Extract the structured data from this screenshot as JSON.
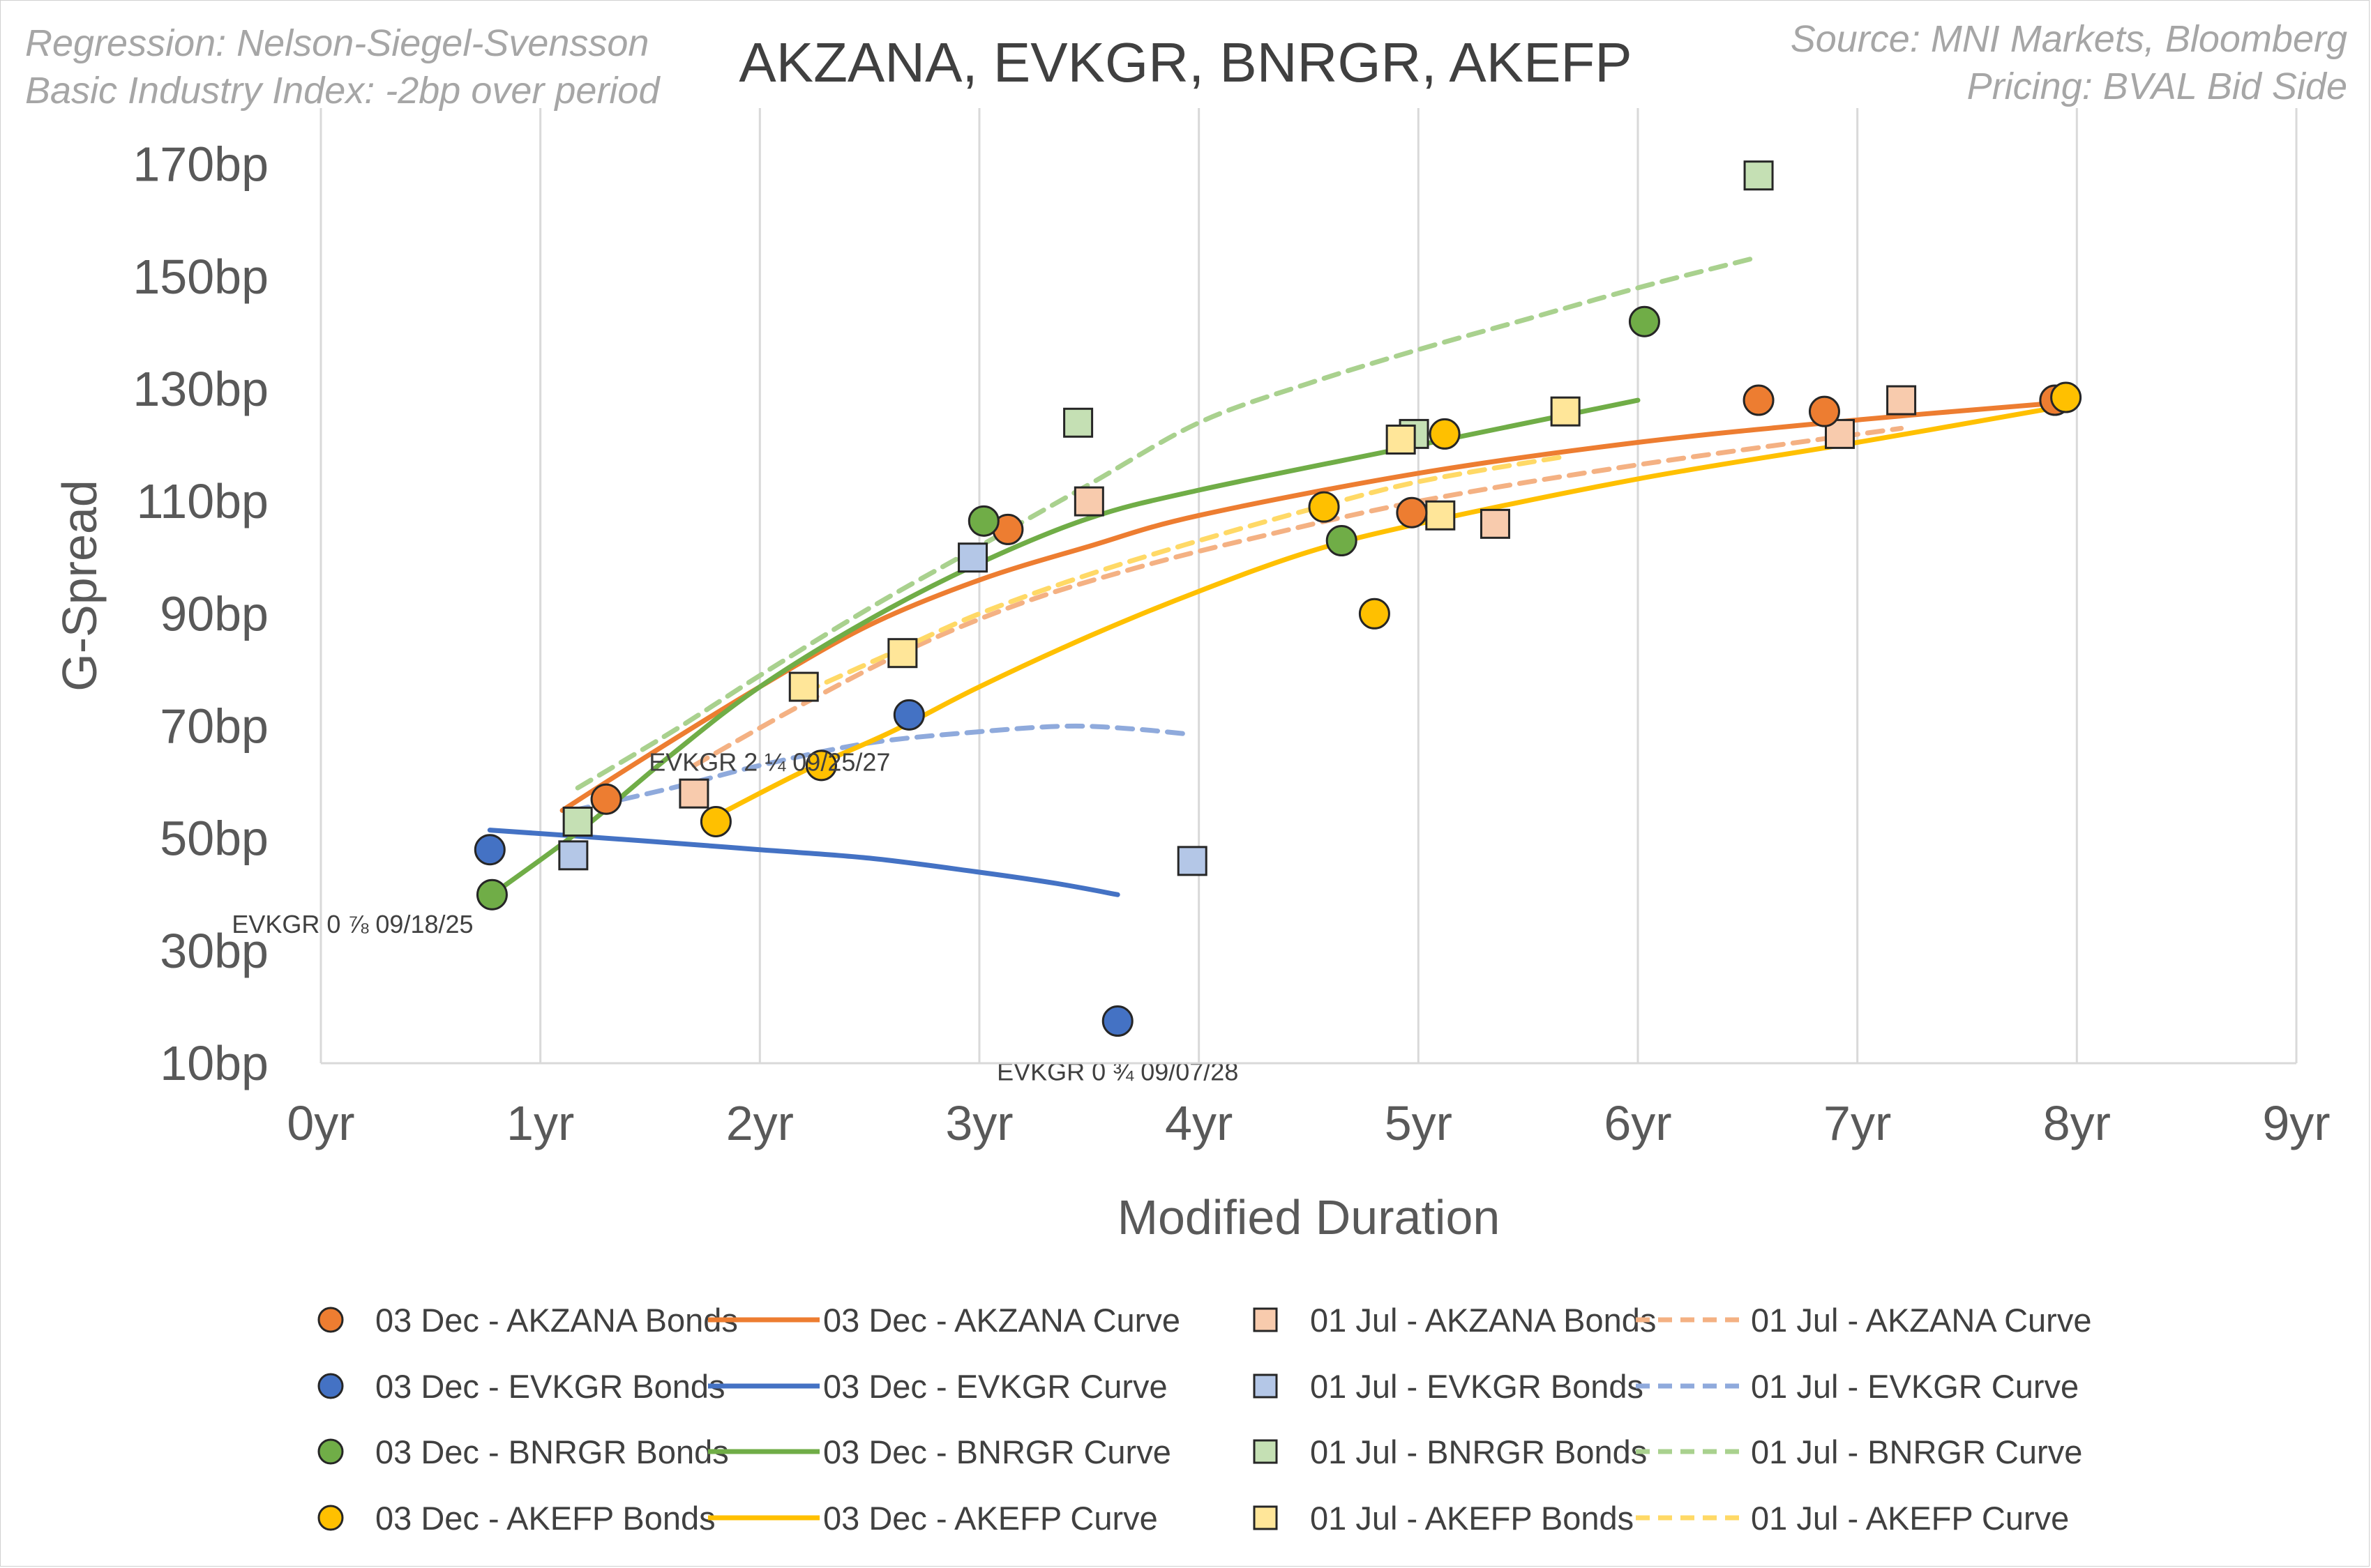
{
  "title": "AKZANA, EVKGR, BNRGR, AKEFP",
  "notes_left": [
    "Regression: Nelson-Siegel-Svensson",
    "Basic Industry Index: -2bp over period"
  ],
  "notes_right": [
    "Source: MNI Markets, Bloomberg",
    "Pricing: BVAL Bid Side"
  ],
  "chart_data": {
    "type": "scatter",
    "xlabel": "Modified Duration",
    "ylabel": "G-Spread",
    "xlim": [
      0,
      9
    ],
    "ylim": [
      10,
      180
    ],
    "xticks": [
      0,
      1,
      2,
      3,
      4,
      5,
      6,
      7,
      8,
      9
    ],
    "xtick_labels": [
      "0yr",
      "1yr",
      "2yr",
      "3yr",
      "4yr",
      "5yr",
      "6yr",
      "7yr",
      "8yr",
      "9yr"
    ],
    "yticks": [
      10,
      30,
      50,
      70,
      90,
      110,
      130,
      150,
      170
    ],
    "ytick_labels": [
      "10bp",
      "30bp",
      "50bp",
      "70bp",
      "90bp",
      "110bp",
      "130bp",
      "150bp",
      "170bp"
    ],
    "grid": "vertical",
    "legend_position": "bottom",
    "colors": {
      "akzana": "#ed7d31",
      "evkgr": "#4472c4",
      "bnrgr": "#70ad47",
      "akefp": "#ffc000",
      "akzana_light": "#f8cbad",
      "evkgr_light": "#b4c7e7",
      "bnrgr_light": "#c5e0b4",
      "akefp_light": "#ffe699",
      "akzana_dash": "#f4b183",
      "evkgr_dash": "#8faadc",
      "bnrgr_dash": "#a9d18e",
      "akefp_dash": "#ffd966"
    },
    "series": [
      {
        "id": "akzana-bonds-dec",
        "name": "03 Dec - AKZANA Bonds",
        "kind": "bonds",
        "marker": "circle",
        "color": "akzana",
        "points": [
          [
            1.3,
            57
          ],
          [
            3.13,
            105
          ],
          [
            4.97,
            108
          ],
          [
            6.55,
            128
          ],
          [
            6.85,
            126
          ],
          [
            7.9,
            128
          ]
        ]
      },
      {
        "id": "akzana-curve-dec",
        "name": "03 Dec - AKZANA Curve",
        "kind": "curve",
        "dashed": false,
        "color": "akzana",
        "points": [
          [
            1.1,
            55
          ],
          [
            1.5,
            65
          ],
          [
            2.0,
            77
          ],
          [
            2.5,
            88
          ],
          [
            3.0,
            96
          ],
          [
            3.5,
            102
          ],
          [
            4.0,
            107.5
          ],
          [
            5.0,
            115
          ],
          [
            6.0,
            120.5
          ],
          [
            7.0,
            124.5
          ],
          [
            7.9,
            127.5
          ]
        ]
      },
      {
        "id": "akzana-bonds-jul",
        "name": "01 Jul - AKZANA Bonds",
        "kind": "bonds",
        "marker": "square",
        "color": "akzana_light",
        "points": [
          [
            1.7,
            58
          ],
          [
            3.5,
            110
          ],
          [
            5.35,
            106
          ],
          [
            6.92,
            122
          ],
          [
            7.2,
            128
          ]
        ]
      },
      {
        "id": "akzana-curve-jul",
        "name": "01 Jul - AKZANA Curve",
        "kind": "curve",
        "dashed": true,
        "color": "akzana_dash",
        "points": [
          [
            1.7,
            63
          ],
          [
            2.2,
            74
          ],
          [
            2.7,
            84
          ],
          [
            3.2,
            92
          ],
          [
            3.7,
            98
          ],
          [
            4.2,
            103
          ],
          [
            5.0,
            110
          ],
          [
            6.0,
            116.5
          ],
          [
            7.2,
            123
          ]
        ]
      },
      {
        "id": "evkgr-bonds-dec",
        "name": "03 Dec - EVKGR Bonds",
        "kind": "bonds",
        "marker": "circle",
        "color": "evkgr",
        "points": [
          [
            0.77,
            48
          ],
          [
            2.68,
            72
          ],
          [
            3.63,
            17.5
          ]
        ]
      },
      {
        "id": "evkgr-curve-dec",
        "name": "03 Dec - EVKGR Curve",
        "kind": "curve",
        "dashed": false,
        "color": "evkgr",
        "points": [
          [
            0.77,
            51.5
          ],
          [
            1.5,
            49.5
          ],
          [
            2.0,
            48
          ],
          [
            2.5,
            46.5
          ],
          [
            3.0,
            44
          ],
          [
            3.35,
            42
          ],
          [
            3.63,
            40
          ]
        ]
      },
      {
        "id": "evkgr-bonds-jul",
        "name": "01 Jul - EVKGR Bonds",
        "kind": "bonds",
        "marker": "square",
        "color": "evkgr_light",
        "points": [
          [
            1.15,
            47
          ],
          [
            2.97,
            100
          ],
          [
            3.97,
            46
          ]
        ]
      },
      {
        "id": "evkgr-curve-jul",
        "name": "01 Jul - EVKGR Curve",
        "kind": "curve",
        "dashed": true,
        "color": "evkgr_dash",
        "points": [
          [
            1.15,
            55
          ],
          [
            1.6,
            59
          ],
          [
            2.0,
            63
          ],
          [
            2.5,
            67
          ],
          [
            3.0,
            69
          ],
          [
            3.4,
            70
          ],
          [
            3.7,
            69.5
          ],
          [
            3.97,
            68.5
          ]
        ]
      },
      {
        "id": "bnrgr-bonds-dec",
        "name": "03 Dec - BNRGR Bonds",
        "kind": "bonds",
        "marker": "circle",
        "color": "bnrgr",
        "points": [
          [
            0.78,
            40
          ],
          [
            3.02,
            106.5
          ],
          [
            4.65,
            103
          ],
          [
            6.03,
            142
          ]
        ]
      },
      {
        "id": "bnrgr-curve-dec",
        "name": "03 Dec - BNRGR Curve",
        "kind": "curve",
        "dashed": false,
        "color": "bnrgr",
        "points": [
          [
            0.78,
            40
          ],
          [
            1.2,
            52
          ],
          [
            1.6,
            65
          ],
          [
            2.0,
            77
          ],
          [
            2.5,
            89
          ],
          [
            3.0,
            99
          ],
          [
            3.5,
            107
          ],
          [
            4.0,
            112
          ],
          [
            5.0,
            120
          ],
          [
            6.0,
            128
          ]
        ]
      },
      {
        "id": "bnrgr-bonds-jul",
        "name": "01 Jul - BNRGR Bonds",
        "kind": "bonds",
        "marker": "square",
        "color": "bnrgr_light",
        "points": [
          [
            1.17,
            53
          ],
          [
            3.45,
            124
          ],
          [
            4.98,
            122
          ],
          [
            6.55,
            168
          ]
        ]
      },
      {
        "id": "bnrgr-curve-jul",
        "name": "01 Jul - BNRGR Curve",
        "kind": "curve",
        "dashed": true,
        "color": "bnrgr_dash",
        "points": [
          [
            1.17,
            59
          ],
          [
            1.6,
            69
          ],
          [
            2.0,
            79
          ],
          [
            2.5,
            91
          ],
          [
            3.0,
            102
          ],
          [
            3.5,
            113
          ],
          [
            4.0,
            124
          ],
          [
            4.5,
            131
          ],
          [
            5.0,
            137
          ],
          [
            5.5,
            142.5
          ],
          [
            6.0,
            148
          ],
          [
            6.55,
            153.5
          ]
        ]
      },
      {
        "id": "akefp-bonds-dec",
        "name": "03 Dec - AKEFP Bonds",
        "kind": "bonds",
        "marker": "circle",
        "color": "akefp",
        "points": [
          [
            1.8,
            53
          ],
          [
            2.28,
            63
          ],
          [
            4.57,
            109
          ],
          [
            4.8,
            90
          ],
          [
            5.12,
            122
          ],
          [
            7.95,
            128.5
          ]
        ]
      },
      {
        "id": "akefp-curve-dec",
        "name": "03 Dec - AKEFP Curve",
        "kind": "curve",
        "dashed": false,
        "color": "akefp",
        "points": [
          [
            1.8,
            54
          ],
          [
            2.2,
            62
          ],
          [
            2.6,
            69
          ],
          [
            3.0,
            77
          ],
          [
            3.5,
            86
          ],
          [
            4.0,
            94
          ],
          [
            4.5,
            101
          ],
          [
            5.0,
            106
          ],
          [
            6.0,
            114
          ],
          [
            7.0,
            120.5
          ],
          [
            7.95,
            127
          ]
        ]
      },
      {
        "id": "akefp-bonds-jul",
        "name": "01 Jul - AKEFP Bonds",
        "kind": "bonds",
        "marker": "square",
        "color": "akefp_light",
        "points": [
          [
            2.2,
            77
          ],
          [
            2.65,
            83
          ],
          [
            4.92,
            121
          ],
          [
            5.1,
            107.5
          ],
          [
            5.67,
            126
          ]
        ]
      },
      {
        "id": "akefp-curve-jul",
        "name": "01 Jul - AKEFP Curve",
        "kind": "curve",
        "dashed": true,
        "color": "akefp_dash",
        "points": [
          [
            2.2,
            76
          ],
          [
            2.6,
            83
          ],
          [
            3.0,
            90
          ],
          [
            3.5,
            97
          ],
          [
            4.0,
            103
          ],
          [
            4.5,
            108.5
          ],
          [
            5.0,
            113.5
          ],
          [
            5.67,
            118
          ]
        ]
      }
    ],
    "annotations": [
      {
        "id": "annot-evkgr-0875",
        "text": "EVKGR 0 ⅞ 09/18/25",
        "x": 0.78,
        "y": 40,
        "anchor": "below-left"
      },
      {
        "id": "annot-evkgr-225",
        "text": "EVKGR 2 ¼ 09/25/27",
        "x": 2.68,
        "y": 72,
        "anchor": "below-left"
      },
      {
        "id": "annot-evkgr-075",
        "text": "EVKGR 0 ¾ 09/07/28",
        "x": 3.63,
        "y": 17.5,
        "anchor": "below"
      }
    ],
    "legend_order": [
      "akzana-bonds-dec",
      "akzana-curve-dec",
      "akzana-bonds-jul",
      "akzana-curve-jul",
      "evkgr-bonds-dec",
      "evkgr-curve-dec",
      "evkgr-bonds-jul",
      "evkgr-curve-jul",
      "bnrgr-bonds-dec",
      "bnrgr-curve-dec",
      "bnrgr-bonds-jul",
      "bnrgr-curve-jul",
      "akefp-bonds-dec",
      "akefp-curve-dec",
      "akefp-bonds-jul",
      "akefp-curve-jul"
    ]
  }
}
